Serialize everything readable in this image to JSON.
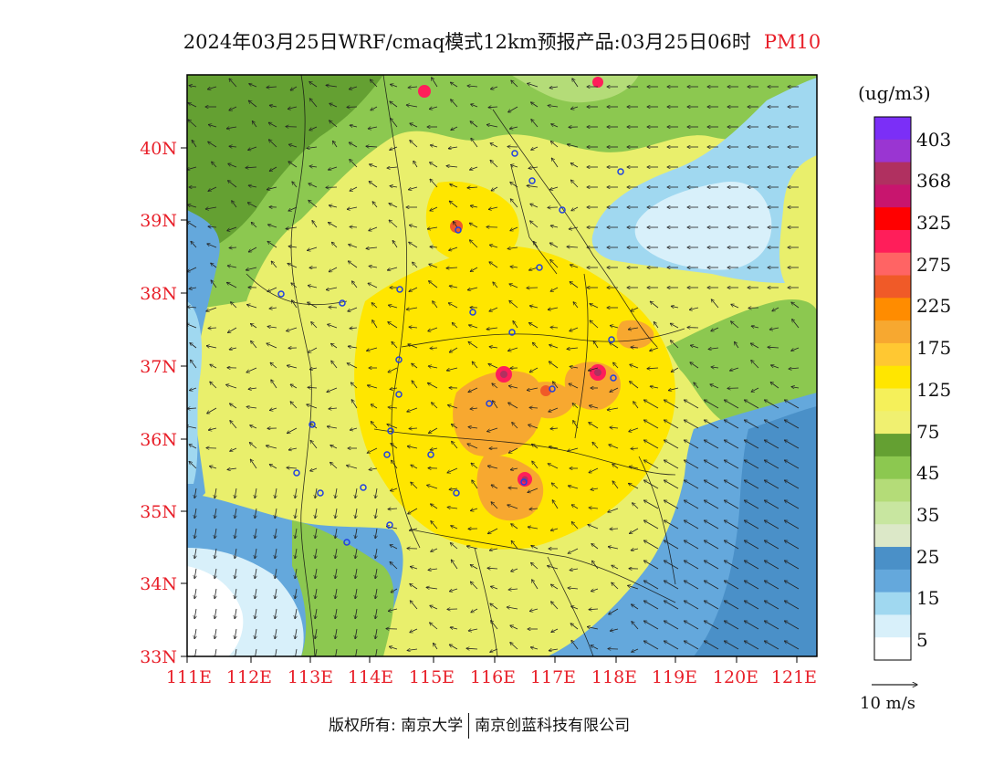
{
  "title": {
    "main": "2024年03月25日WRF/cmaq模式12km预报产品:03月25日06时",
    "variable": "PM10",
    "variable_color": "#e8202a"
  },
  "axes": {
    "lat_labels": [
      "40N",
      "39N",
      "38N",
      "37N",
      "36N",
      "35N",
      "34N",
      "33N"
    ],
    "lon_labels": [
      "111E",
      "112E",
      "113E",
      "114E",
      "115E",
      "116E",
      "117E",
      "118E",
      "119E",
      "120E",
      "121E"
    ],
    "label_color": "#e8202a"
  },
  "legend": {
    "unit": "(ug/m3)",
    "labels": [
      "403",
      "368",
      "325",
      "275",
      "225",
      "175",
      "125",
      "75",
      "45",
      "35",
      "25",
      "15",
      "5"
    ],
    "colors": [
      "#7b2ff7",
      "#9a35d2",
      "#b03060",
      "#c8156e",
      "#ff0000",
      "#ff1e5a",
      "#ff6464",
      "#f05a28",
      "#ff8c00",
      "#f7a830",
      "#ffc832",
      "#ffe600",
      "#f5f05a",
      "#f0f070",
      "#64a032",
      "#8cc850",
      "#b4dc78",
      "#c8e6a0",
      "#dce8c8",
      "#4a90c8",
      "#64a8dc",
      "#a0d8f0",
      "#d8f0fa",
      "#ffffff"
    ]
  },
  "wind": {
    "reference_label": "10 m/s"
  },
  "footer": {
    "left": "版权所有: 南京大学",
    "right": "南京创蓝科技有限公司"
  }
}
